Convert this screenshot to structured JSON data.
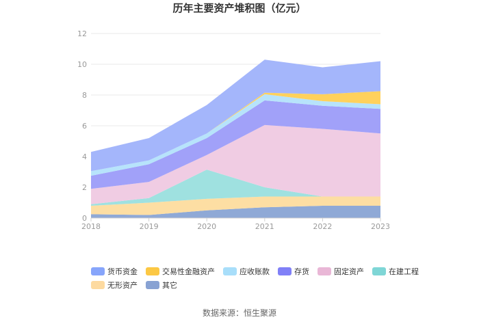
{
  "chart_data": {
    "type": "area",
    "stacked": true,
    "title": "历年主要资产堆积图（亿元）",
    "x": [
      "2018",
      "2019",
      "2020",
      "2021",
      "2022",
      "2023"
    ],
    "ylim": [
      0,
      12
    ],
    "yticks": [
      "0",
      "2",
      "4",
      "6",
      "8",
      "10",
      "12"
    ],
    "grid": true,
    "legend_position": "bottom",
    "series": [
      {
        "name": "其它",
        "color": "#8fa9d6",
        "values": [
          0.25,
          0.2,
          0.5,
          0.7,
          0.8,
          0.8
        ]
      },
      {
        "name": "无形资产",
        "color": "#fddea3",
        "values": [
          0.55,
          0.8,
          0.75,
          0.7,
          0.6,
          0.6
        ]
      },
      {
        "name": "在建工程",
        "color": "#9fe1e0",
        "values": [
          0.1,
          0.3,
          1.9,
          0.6,
          0.0,
          0.0
        ]
      },
      {
        "name": "固定资产",
        "color": "#f0cce3",
        "values": [
          1.0,
          1.05,
          0.95,
          4.05,
          4.4,
          4.1
        ]
      },
      {
        "name": "存货",
        "color": "#a1a1f9",
        "values": [
          0.85,
          1.15,
          1.1,
          1.6,
          1.5,
          1.6
        ]
      },
      {
        "name": "应收账款",
        "color": "#b7e3fb",
        "values": [
          0.3,
          0.25,
          0.3,
          0.4,
          0.3,
          0.3
        ]
      },
      {
        "name": "交易性金融资产",
        "color": "#ffd15c",
        "values": [
          0.0,
          0.0,
          0.0,
          0.1,
          0.45,
          0.85
        ]
      },
      {
        "name": "货币资金",
        "color": "#a4b6fb",
        "values": [
          1.25,
          1.45,
          1.85,
          2.15,
          1.75,
          1.95
        ]
      }
    ],
    "legend_order": [
      "货币资金",
      "交易性金融资产",
      "应收账款",
      "存货",
      "固定资产",
      "在建工程",
      "无形资产",
      "其它"
    ],
    "legend_colors": {
      "货币资金": "#87a5fb",
      "交易性金融资产": "#fcc844",
      "应收账款": "#a8defa",
      "存货": "#8080f7",
      "固定资产": "#e9b7d6",
      "在建工程": "#7fd6d6",
      "无形资产": "#fddaa0",
      "其它": "#88a2d3"
    }
  },
  "source_text": "数据来源：恒生聚源"
}
